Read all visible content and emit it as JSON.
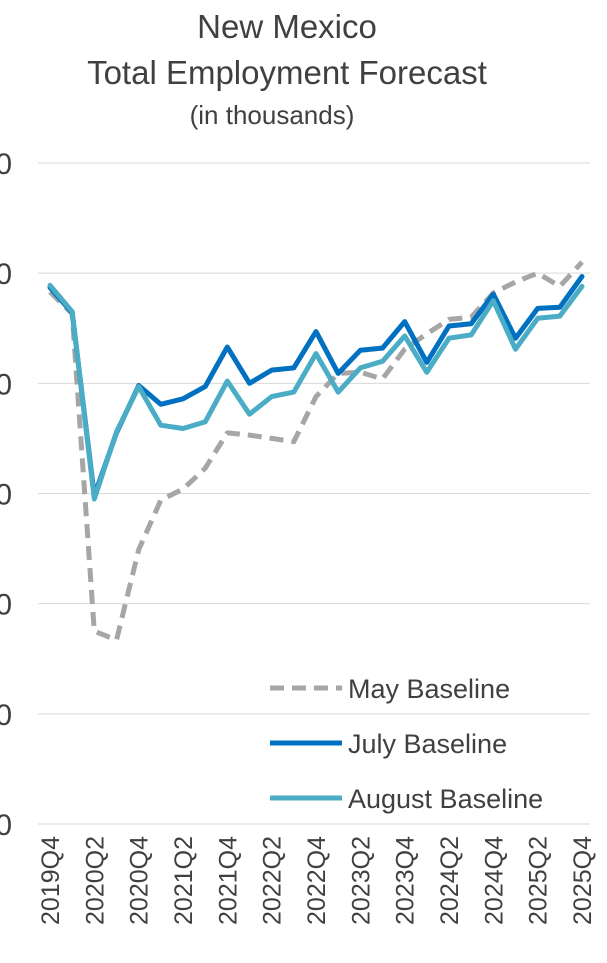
{
  "chart_data": {
    "type": "line",
    "title": [
      "New Mexico",
      "Total Employment Forecast"
    ],
    "subtitle": "(in thousands)",
    "xlabel": "",
    "ylabel": "",
    "ylim": [
      0,
      6
    ],
    "y_ticks": [
      "0",
      "0",
      "0",
      "0",
      "0",
      "0",
      "0"
    ],
    "x": [
      "2019Q4",
      "2020Q1",
      "2020Q2",
      "2020Q3",
      "2020Q4",
      "2021Q1",
      "2021Q2",
      "2021Q3",
      "2021Q4",
      "2022Q1",
      "2022Q2",
      "2022Q3",
      "2022Q4",
      "2023Q1",
      "2023Q2",
      "2023Q3",
      "2023Q4",
      "2024Q1",
      "2024Q2",
      "2024Q3",
      "2024Q4",
      "2025Q1",
      "2025Q2",
      "2025Q3",
      "2025Q4"
    ],
    "x_tick_labels": [
      "2019Q4",
      "2020Q2",
      "2020Q4",
      "2021Q2",
      "2021Q4",
      "2022Q2",
      "2022Q4",
      "2023Q2",
      "2023Q4",
      "2024Q2",
      "2024Q4",
      "2025Q2",
      "2025Q4"
    ],
    "grid": true,
    "legend_position": "bottom-right",
    "series": [
      {
        "name": "May Baseline",
        "color": "#a6a6a6",
        "dash": true,
        "values": [
          4.83,
          4.63,
          1.75,
          1.67,
          2.49,
          2.94,
          3.04,
          3.23,
          3.55,
          3.53,
          3.5,
          3.47,
          3.88,
          4.09,
          4.1,
          4.04,
          4.31,
          4.45,
          4.58,
          4.6,
          4.82,
          4.92,
          5.0,
          4.88,
          5.1
        ]
      },
      {
        "name": "July Baseline",
        "color": "#0070c0",
        "dash": false,
        "values": [
          4.87,
          4.64,
          2.98,
          3.55,
          3.98,
          3.81,
          3.86,
          3.97,
          4.33,
          4.0,
          4.12,
          4.14,
          4.47,
          4.09,
          4.3,
          4.32,
          4.56,
          4.19,
          4.52,
          4.54,
          4.81,
          4.41,
          4.68,
          4.69,
          4.97
        ]
      },
      {
        "name": "August Baseline",
        "color": "#4bacc6",
        "dash": false,
        "values": [
          4.89,
          4.65,
          2.95,
          3.56,
          3.97,
          3.62,
          3.59,
          3.65,
          4.02,
          3.72,
          3.88,
          3.92,
          4.27,
          3.92,
          4.14,
          4.2,
          4.43,
          4.1,
          4.41,
          4.44,
          4.75,
          4.31,
          4.59,
          4.61,
          4.88
        ]
      }
    ]
  }
}
